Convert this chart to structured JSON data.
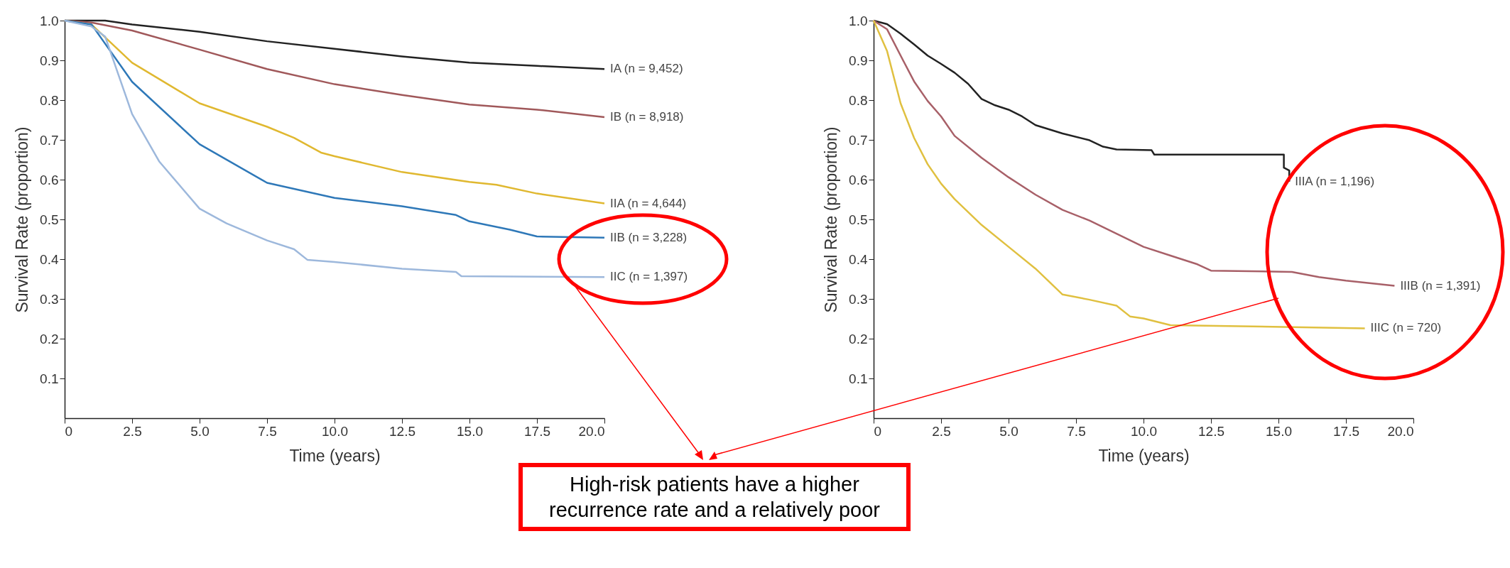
{
  "chart_data": [
    {
      "type": "line",
      "xlabel": "Time (years)",
      "ylabel": "Survival Rate (proportion)",
      "xlim": [
        0,
        20
      ],
      "ylim": [
        0,
        1
      ],
      "xticks": [
        {
          "value": 0,
          "label": "0"
        },
        2.5,
        {
          "value": 5,
          "label": "5.0"
        },
        7.5,
        {
          "value": 10,
          "label": "10.0"
        },
        12.5,
        {
          "value": 15,
          "label": "15.0"
        },
        17.5,
        {
          "value": 20,
          "label": "20.0"
        }
      ],
      "yticks": [
        0.1,
        0.2,
        0.3,
        0.4,
        0.5,
        0.6,
        0.7,
        0.8,
        0.9,
        {
          "value": 1,
          "label": "1.0"
        }
      ],
      "series": [
        {
          "name": "IA (n = 9,452)",
          "color": "#222222",
          "x": [
            0,
            1.5,
            2.5,
            5,
            7.5,
            10,
            12.5,
            15,
            17.5,
            20
          ],
          "values": [
            1,
            1,
            0.99,
            0.972,
            0.948,
            0.929,
            0.91,
            0.894,
            0.886,
            0.878
          ]
        },
        {
          "name": "IB (n = 8,918)",
          "color": "#a0585a",
          "x": [
            0,
            1,
            2.5,
            5,
            7.5,
            10,
            12.5,
            15,
            17.5,
            20
          ],
          "values": [
            1,
            0.995,
            0.975,
            0.927,
            0.878,
            0.84,
            0.813,
            0.789,
            0.776,
            0.757
          ]
        },
        {
          "name": "IIA (n = 4,644)",
          "color": "#e0b830",
          "x": [
            0,
            1,
            2.5,
            5,
            7.5,
            8.5,
            9.5,
            10,
            12.5,
            15,
            16,
            17.5,
            20
          ],
          "values": [
            1,
            0.99,
            0.894,
            0.792,
            0.733,
            0.705,
            0.668,
            0.659,
            0.619,
            0.594,
            0.587,
            0.565,
            0.54
          ]
        },
        {
          "name": "IIB (n = 3,228)",
          "color": "#2e78b8",
          "x": [
            0,
            1,
            2.5,
            5,
            7.5,
            10,
            12.5,
            14.5,
            15,
            16.5,
            17.5,
            20
          ],
          "values": [
            1,
            0.99,
            0.846,
            0.689,
            0.592,
            0.554,
            0.533,
            0.511,
            0.495,
            0.474,
            0.457,
            0.454
          ]
        },
        {
          "name": "IIC (n = 1,397)",
          "color": "#9db8dc",
          "x": [
            0,
            1,
            1.5,
            2.5,
            3.5,
            5,
            6,
            7.5,
            8.5,
            9,
            10,
            12.5,
            14.5,
            14.7,
            20
          ],
          "values": [
            1,
            0.985,
            0.96,
            0.765,
            0.646,
            0.527,
            0.49,
            0.447,
            0.425,
            0.398,
            0.393,
            0.376,
            0.368,
            0.357,
            0.355
          ]
        }
      ]
    },
    {
      "type": "line",
      "xlabel": "Time (years)",
      "ylabel": "Survival Rate (proportion)",
      "xlim": [
        0,
        20
      ],
      "ylim": [
        0,
        1
      ],
      "xticks": [
        {
          "value": 0,
          "label": "0"
        },
        2.5,
        {
          "value": 5,
          "label": "5.0"
        },
        7.5,
        {
          "value": 10,
          "label": "10.0"
        },
        12.5,
        {
          "value": 15,
          "label": "15.0"
        },
        17.5,
        {
          "value": 20,
          "label": "20.0"
        }
      ],
      "yticks": [
        0.1,
        0.2,
        0.3,
        0.4,
        0.5,
        0.6,
        0.7,
        0.8,
        0.9,
        {
          "value": 1,
          "label": "1.0"
        }
      ],
      "annotations": [
        "High-risk patients have a higher recurrence rate and a relatively poor"
      ],
      "series": [
        {
          "name": "IIIA (n = 1,196)",
          "color": "#222222",
          "x": [
            0,
            0.5,
            1,
            1.5,
            2,
            2.5,
            3,
            3.5,
            4,
            4.5,
            5,
            5.5,
            6,
            7,
            8,
            8.5,
            9,
            10.3,
            10.4,
            15.2,
            15.2,
            15.4,
            15.4
          ],
          "values": [
            1,
            0.991,
            0.967,
            0.94,
            0.912,
            0.891,
            0.869,
            0.841,
            0.803,
            0.787,
            0.776,
            0.759,
            0.737,
            0.716,
            0.699,
            0.683,
            0.676,
            0.674,
            0.663,
            0.663,
            0.63,
            0.623,
            0.595
          ]
        },
        {
          "name": "IIIB (n = 1,391)",
          "color": "#a86068",
          "x": [
            0,
            0.5,
            1,
            1.5,
            2,
            2.5,
            3,
            4,
            5,
            6,
            7,
            8,
            9,
            10,
            11,
            12,
            12.5,
            15.5,
            16.5,
            17.5,
            19.3
          ],
          "values": [
            1,
            0.978,
            0.912,
            0.847,
            0.798,
            0.759,
            0.71,
            0.655,
            0.606,
            0.562,
            0.524,
            0.497,
            0.464,
            0.431,
            0.409,
            0.387,
            0.371,
            0.368,
            0.355,
            0.346,
            0.333
          ]
        },
        {
          "name": "IIIC (n = 720)",
          "color": "#e0c040",
          "x": [
            0,
            0.5,
            1,
            1.5,
            2,
            2.5,
            3,
            4,
            5,
            6,
            7,
            8,
            9,
            9.5,
            10,
            11,
            18.2
          ],
          "values": [
            1,
            0.923,
            0.792,
            0.705,
            0.639,
            0.59,
            0.551,
            0.486,
            0.431,
            0.376,
            0.311,
            0.298,
            0.283,
            0.256,
            0.251,
            0.234,
            0.226
          ]
        }
      ]
    }
  ]
}
